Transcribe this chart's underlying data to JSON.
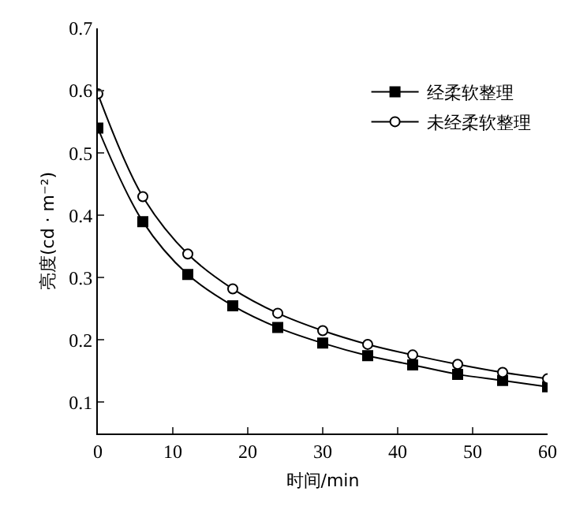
{
  "chart_data": {
    "type": "line",
    "xlabel": "时间/min",
    "ylabel": "亮度(cd · m⁻²)",
    "x": [
      0,
      6,
      12,
      18,
      24,
      30,
      36,
      42,
      48,
      54,
      60
    ],
    "series": [
      {
        "name": "经柔软整理",
        "color": "#000000",
        "marker": "square",
        "values": [
          0.54,
          0.39,
          0.305,
          0.255,
          0.22,
          0.195,
          0.175,
          0.16,
          0.145,
          0.135,
          0.125
        ]
      },
      {
        "name": "未经柔软整理",
        "color": "#000000",
        "marker": "circle",
        "values": [
          0.595,
          0.43,
          0.338,
          0.282,
          0.243,
          0.215,
          0.193,
          0.176,
          0.161,
          0.148,
          0.138
        ]
      }
    ],
    "xlim": [
      0,
      60
    ],
    "xticks": [
      0,
      10,
      20,
      30,
      40,
      50,
      60
    ],
    "ylim": [
      0.05,
      0.7
    ],
    "yticks": [
      0.1,
      0.2,
      0.3,
      0.4,
      0.5,
      0.6,
      0.7
    ],
    "grid": false,
    "legend": "top right",
    "line_style": "solid"
  }
}
